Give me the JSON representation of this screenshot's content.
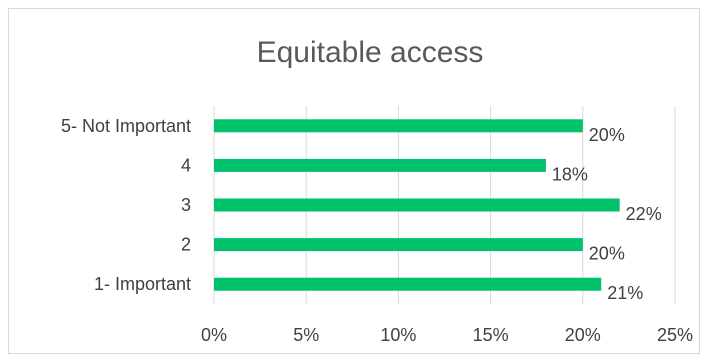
{
  "chart_data": {
    "type": "bar",
    "orientation": "horizontal",
    "title": "Equitable access",
    "categories": [
      "5- Not Important",
      "4",
      "3",
      "2",
      "1- Important"
    ],
    "values": [
      20,
      18,
      22,
      20,
      21
    ],
    "data_labels": [
      "20%",
      "18%",
      "22%",
      "20%",
      "21%"
    ],
    "x_ticks": [
      "0%",
      "5%",
      "10%",
      "15%",
      "20%",
      "25%"
    ],
    "xlim": [
      0,
      25
    ],
    "xlabel": "",
    "ylabel": "",
    "grid": "vertical",
    "legend": "none",
    "bar_color": "#00c26b",
    "gridline_color": "#d9d9d9",
    "text_color": "#404040",
    "title_color": "#595959"
  }
}
